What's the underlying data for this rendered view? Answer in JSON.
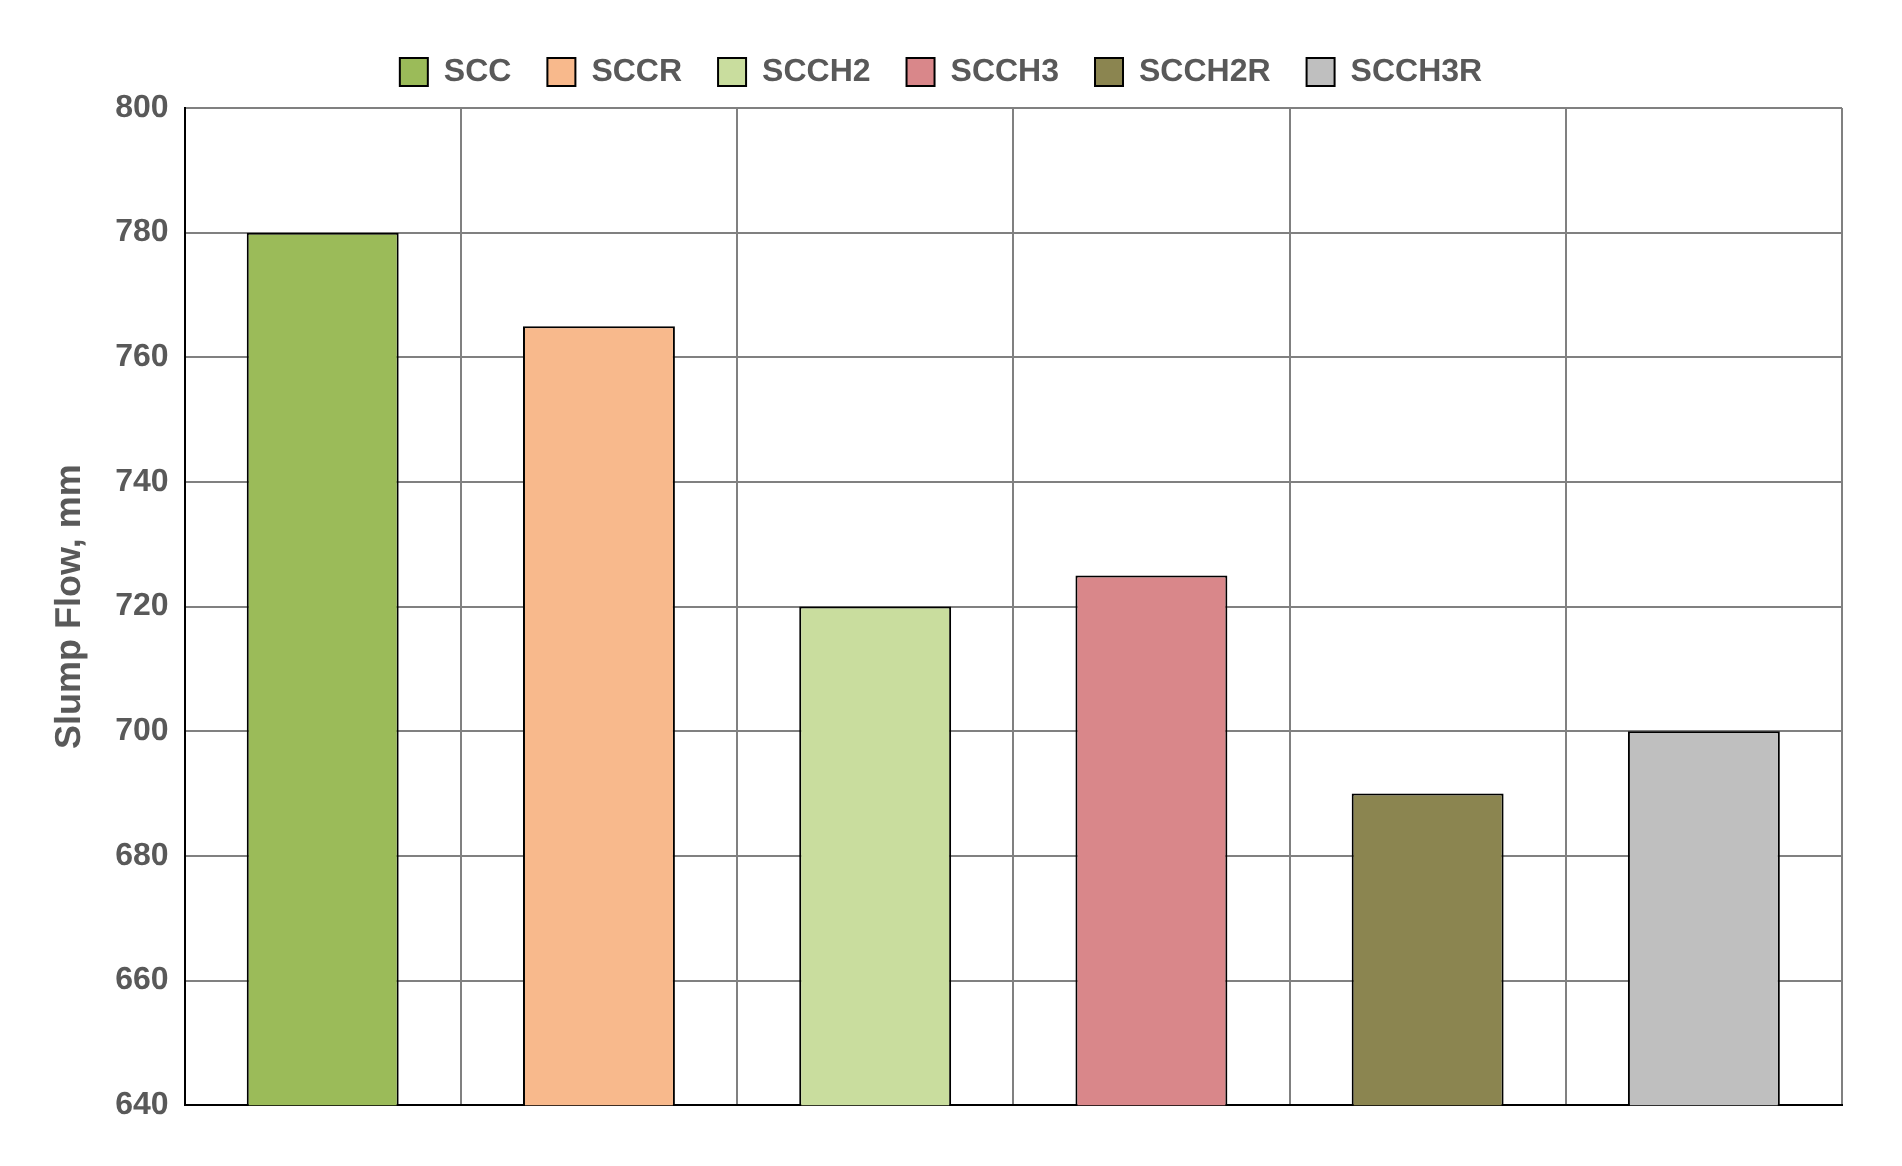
{
  "chart_data": {
    "type": "bar",
    "ylabel": "Slump Flow, mm",
    "categories": [
      null,
      null,
      null,
      null,
      null,
      null
    ],
    "series": [
      {
        "name": "SCC",
        "color": "#9bbb59",
        "values": [
          780,
          null,
          null,
          null,
          null,
          null
        ]
      },
      {
        "name": "SCCR",
        "color": "#f8b98c",
        "values": [
          null,
          765,
          null,
          null,
          null,
          null
        ]
      },
      {
        "name": "SCCH2",
        "color": "#c9dd9e",
        "values": [
          null,
          null,
          720,
          null,
          null,
          null
        ]
      },
      {
        "name": "SCCH3",
        "color": "#d9878a",
        "values": [
          null,
          null,
          null,
          725,
          null,
          null
        ]
      },
      {
        "name": "SCCH2R",
        "color": "#8b8550",
        "values": [
          null,
          null,
          null,
          null,
          690,
          null
        ]
      },
      {
        "name": "SCCH3R",
        "color": "#bfbfbf",
        "values": [
          null,
          null,
          null,
          null,
          null,
          700
        ]
      }
    ],
    "ylim": [
      640,
      800
    ],
    "yticks": [
      640,
      660,
      680,
      700,
      720,
      740,
      760,
      780,
      800
    ],
    "grid": true,
    "legend": "top"
  }
}
